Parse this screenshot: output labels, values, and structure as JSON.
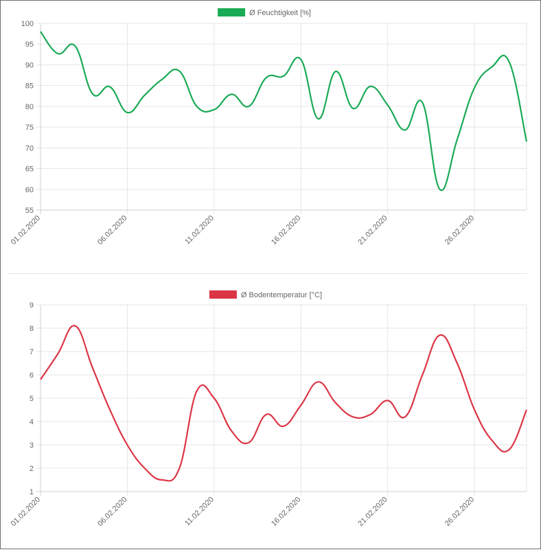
{
  "chart_data": [
    {
      "type": "line",
      "title": "",
      "legend_label": "Ø Feuchtigkeit [%]",
      "legend_position": "top-center",
      "color": "#1aaa55",
      "grid": true,
      "xlabel": "",
      "ylabel": "",
      "ylim": [
        55,
        100
      ],
      "yticks": [
        100,
        95,
        90,
        85,
        80,
        75,
        70,
        65,
        60,
        55
      ],
      "x_tick_labels": [
        "01.02.2020",
        "06.02.2020",
        "11.02.2020",
        "16.02.2020",
        "21.02.2020",
        "26.02.2020"
      ],
      "x": [
        "01.02.2020",
        "02.02.2020",
        "03.02.2020",
        "04.02.2020",
        "05.02.2020",
        "06.02.2020",
        "07.02.2020",
        "08.02.2020",
        "09.02.2020",
        "10.02.2020",
        "11.02.2020",
        "12.02.2020",
        "13.02.2020",
        "14.02.2020",
        "15.02.2020",
        "16.02.2020",
        "17.02.2020",
        "18.02.2020",
        "19.02.2020",
        "20.02.2020",
        "21.02.2020",
        "22.02.2020",
        "23.02.2020",
        "24.02.2020",
        "25.02.2020",
        "26.02.2020",
        "27.02.2020",
        "28.02.2020",
        "29.02.2020"
      ],
      "values": [
        98,
        92.7,
        94.5,
        83,
        84.7,
        78.5,
        82.7,
        86.5,
        88.5,
        80,
        79.2,
        82.9,
        80,
        86.9,
        87.3,
        91.3,
        77,
        88.4,
        79.5,
        84.8,
        80.3,
        74.3,
        80.9,
        60,
        72,
        84.5,
        89.5,
        90.7,
        71.5
      ]
    },
    {
      "type": "line",
      "title": "",
      "legend_label": "Ø Bodentemperatur [°C]",
      "legend_position": "top-center",
      "color": "#dc3545",
      "grid": true,
      "xlabel": "",
      "ylabel": "",
      "ylim": [
        1,
        9
      ],
      "yticks": [
        9,
        8,
        7,
        6,
        5,
        4,
        3,
        2,
        1
      ],
      "x_tick_labels": [
        "01.02.2020",
        "06.02.2020",
        "11.02.2020",
        "16.02.2020",
        "21.02.2020",
        "26.02.2020"
      ],
      "x": [
        "01.02.2020",
        "02.02.2020",
        "03.02.2020",
        "04.02.2020",
        "05.02.2020",
        "06.02.2020",
        "07.02.2020",
        "08.02.2020",
        "09.02.2020",
        "10.02.2020",
        "11.02.2020",
        "12.02.2020",
        "13.02.2020",
        "14.02.2020",
        "15.02.2020",
        "16.02.2020",
        "17.02.2020",
        "18.02.2020",
        "19.02.2020",
        "20.02.2020",
        "21.02.2020",
        "22.02.2020",
        "23.02.2020",
        "24.02.2020",
        "25.02.2020",
        "26.02.2020",
        "27.02.2020",
        "28.02.2020",
        "29.02.2020"
      ],
      "values": [
        5.8,
        6.9,
        8.1,
        6.3,
        4.5,
        3,
        2,
        1.5,
        2,
        5.3,
        5,
        3.6,
        3.1,
        4.3,
        3.8,
        4.7,
        5.7,
        4.8,
        4.2,
        4.3,
        4.9,
        4.2,
        6,
        7.7,
        6.5,
        4.5,
        3.2,
        2.8,
        4.5
      ]
    }
  ]
}
